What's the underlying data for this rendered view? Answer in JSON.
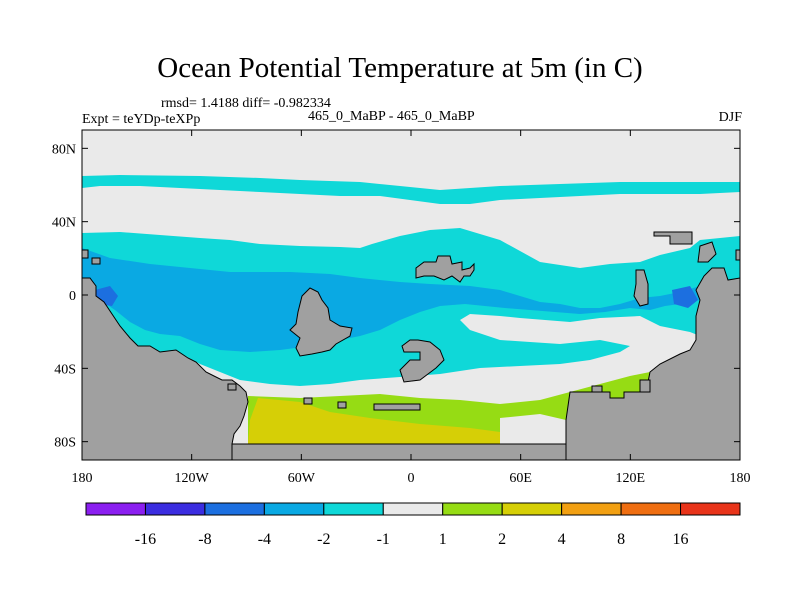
{
  "chart_data": {
    "type": "filled-contour map",
    "title": "Ocean Potential Temperature at 5m (in C)",
    "stats_label": "rmsd= 1.4188 diff= -0.982334",
    "left_label": "Expt = teYDp-teXPp",
    "center_label": "465_0_MaBP - 465_0_MaBP",
    "right_label": "DJF",
    "xlim": [
      -180,
      180
    ],
    "ylim": [
      -90,
      90
    ],
    "x_ticks": [
      {
        "value": -180,
        "label": "180"
      },
      {
        "value": -120,
        "label": "120W"
      },
      {
        "value": -60,
        "label": "60W"
      },
      {
        "value": 0,
        "label": "0"
      },
      {
        "value": 60,
        "label": "60E"
      },
      {
        "value": 120,
        "label": "120E"
      },
      {
        "value": 180,
        "label": "180"
      }
    ],
    "y_ticks": [
      {
        "value": 80,
        "label": "80N"
      },
      {
        "value": 40,
        "label": "40N"
      },
      {
        "value": 0,
        "label": "0"
      },
      {
        "value": -40,
        "label": "40S"
      },
      {
        "value": -80,
        "label": "80S"
      }
    ],
    "colorbar": {
      "labels": [
        "-16",
        "-8",
        "-4",
        "-2",
        "-1",
        "1",
        "2",
        "4",
        "8",
        "16"
      ],
      "colors": [
        "#8b1ff0",
        "#3b2de0",
        "#1c6fe0",
        "#0aa9e3",
        "#0fd8d8",
        "#eaeaea",
        "#96dc14",
        "#d6cf06",
        "#f2a012",
        "#ef6e11",
        "#e8341a"
      ]
    },
    "land_color": "#a0a0a0"
  }
}
